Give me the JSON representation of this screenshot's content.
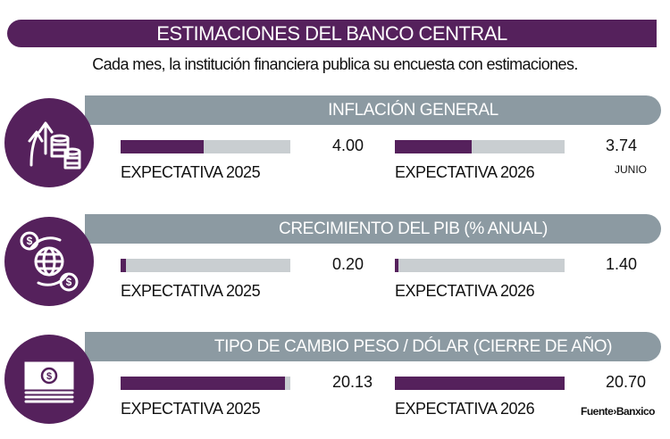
{
  "title": "ESTIMACIONES DEL BANCO CENTRAL",
  "subtitle": "Cada mes, la institución financiera publica su encuesta con estimaciones.",
  "colors": {
    "accent": "#55215c",
    "band": "#8c9aa2",
    "track": "#c9ced1"
  },
  "chart_data": [
    {
      "type": "bar",
      "title": "INFLACIÓN GENERAL",
      "icon": "coins-arrows-up-icon",
      "categories": [
        "EXPECTATIVA 2025",
        "EXPECTATIVA 2026"
      ],
      "values": [
        4.0,
        3.74
      ],
      "value_labels": [
        "4.00",
        "3.74"
      ],
      "fill_fraction": [
        0.49,
        0.45
      ],
      "note": "JUNIO"
    },
    {
      "type": "bar",
      "title": "CRECIMIENTO DEL PIB (% ANUAL)",
      "icon": "globe-dollar-exchange-icon",
      "categories": [
        "EXPECTATIVA 2025",
        "EXPECTATIVA 2026"
      ],
      "values": [
        0.2,
        1.4
      ],
      "value_labels": [
        "0.20",
        "1.40"
      ],
      "fill_fraction": [
        0.03,
        0.02
      ]
    },
    {
      "type": "bar",
      "title": "TIPO DE CAMBIO PESO / DÓLAR (CIERRE DE AÑO)",
      "icon": "banknote-stack-icon",
      "categories": [
        "EXPECTATIVA 2025",
        "EXPECTATIVA 2026"
      ],
      "values": [
        20.13,
        20.7
      ],
      "value_labels": [
        "20.13",
        "20.70"
      ],
      "fill_fraction": [
        0.97,
        1.0
      ]
    }
  ],
  "source": "Fuente›Banxico"
}
